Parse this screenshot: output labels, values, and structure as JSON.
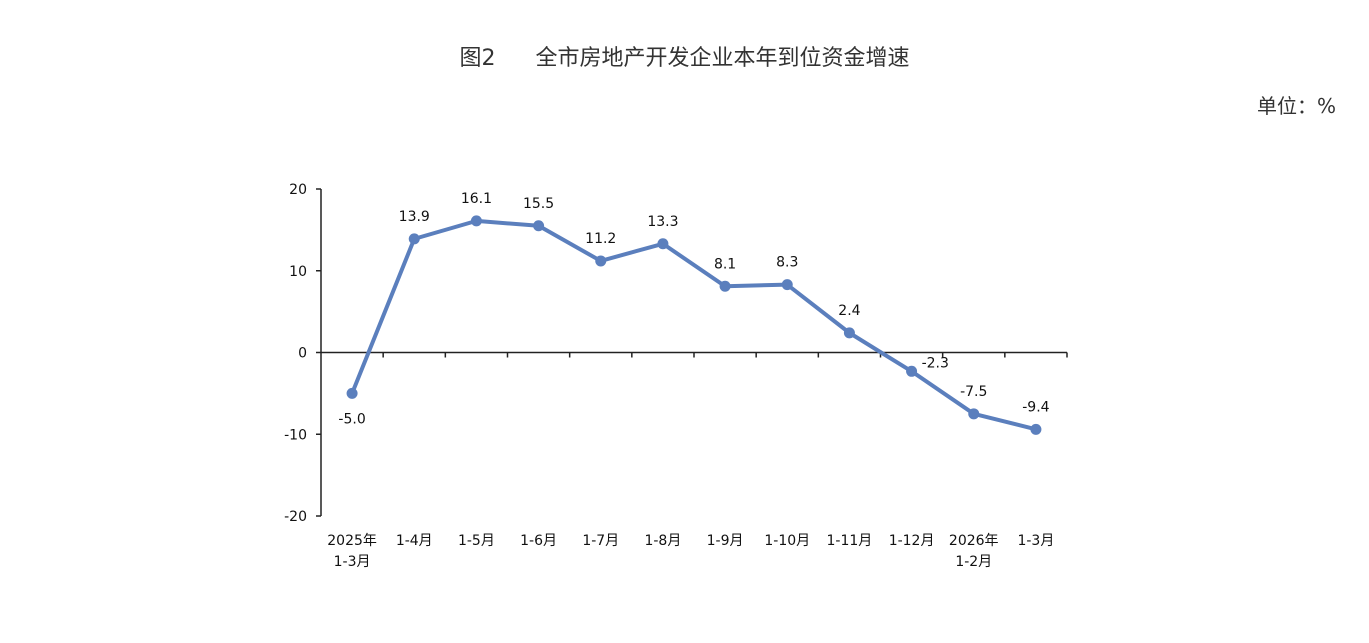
{
  "header": {
    "figure_number": "图2",
    "title": "全市房地产开发企业本年到位资金增速",
    "unit": "单位：%"
  },
  "chart_data": {
    "type": "line",
    "title": "全市房地产开发企业本年到位资金增速",
    "categories": [
      [
        "2025年",
        "1-3月"
      ],
      [
        "1-4月"
      ],
      [
        "1-5月"
      ],
      [
        "1-6月"
      ],
      [
        "1-7月"
      ],
      [
        "1-8月"
      ],
      [
        "1-9月"
      ],
      [
        "1-10月"
      ],
      [
        "1-11月"
      ],
      [
        "1-12月"
      ],
      [
        "2026年",
        "1-2月"
      ],
      [
        "1-3月"
      ]
    ],
    "values": [
      -5.0,
      13.9,
      16.1,
      15.5,
      11.2,
      13.3,
      8.1,
      8.3,
      2.4,
      -2.3,
      -7.5,
      -9.4
    ],
    "data_labels": [
      "-5.0",
      "13.9",
      "16.1",
      "15.5",
      "11.2",
      "13.3",
      "8.1",
      "8.3",
      "2.4",
      "-2.3",
      "-7.5",
      "-9.4"
    ],
    "y_ticks": [
      20,
      10,
      0,
      -10,
      -20
    ],
    "ylim": [
      -20,
      20
    ],
    "grid": false,
    "legend": "none",
    "line_color": "#5B7FBD"
  }
}
